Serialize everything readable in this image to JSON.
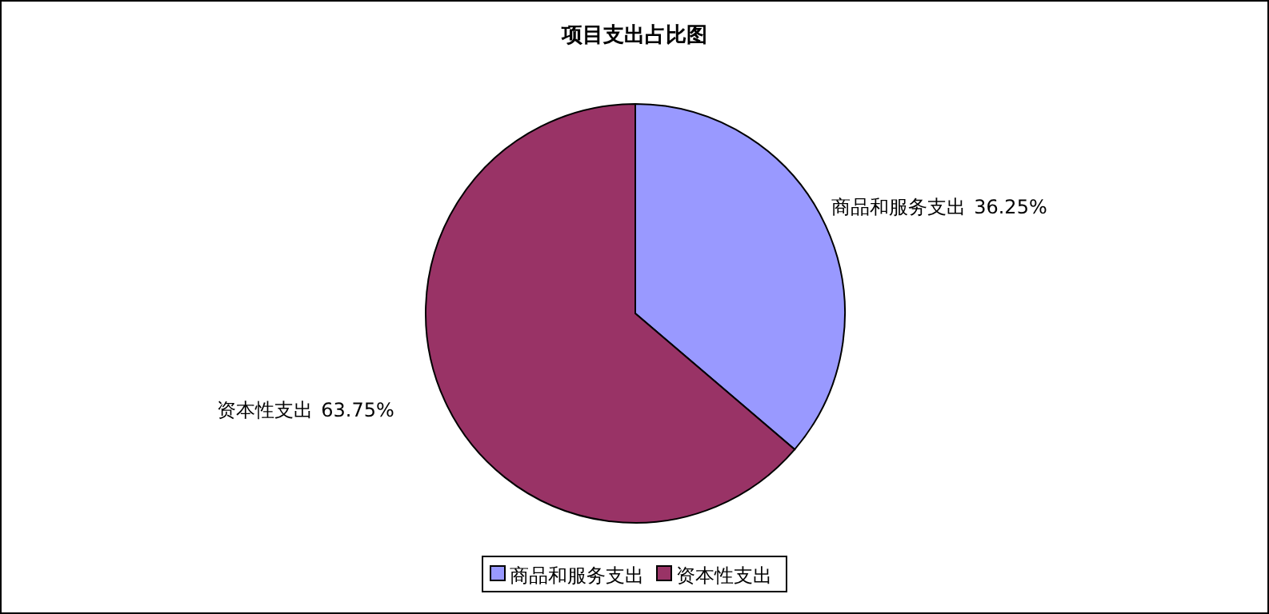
{
  "chart_data": {
    "type": "pie",
    "title": "项目支出占比图",
    "categories": [
      "商品和服务支出",
      "资本性支出"
    ],
    "values": [
      36.25,
      63.75
    ],
    "colors": [
      "#9999ff",
      "#993366"
    ],
    "value_labels": [
      "36.25%",
      "63.75%"
    ],
    "legend": "bottom"
  }
}
